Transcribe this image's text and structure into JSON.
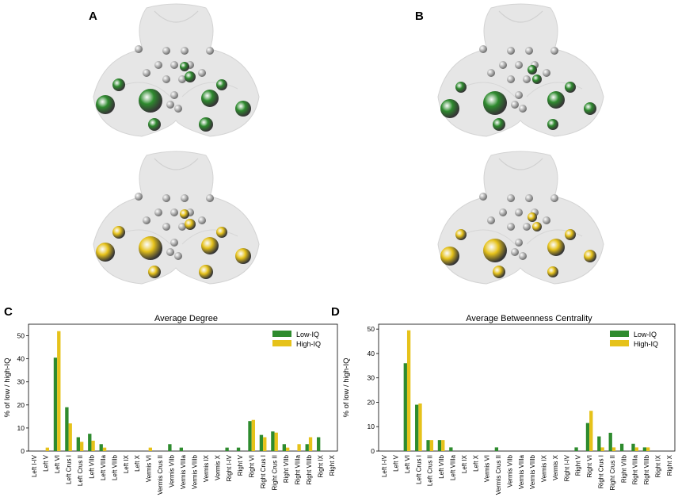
{
  "panels": {
    "a_label": "A",
    "b_label": "B",
    "c_label": "C",
    "d_label": "D"
  },
  "colors": {
    "low_iq": "#2e8b2e",
    "high_iq": "#e6c21a",
    "node_gray": "#9a9a9a"
  },
  "icons": {
    "brain_a_top": "cerebellum-green-nodes",
    "brain_a_bottom": "cerebellum-yellow-nodes",
    "brain_b_top": "cerebellum-green-nodes",
    "brain_b_bottom": "cerebellum-yellow-nodes"
  },
  "chart_data": [
    {
      "type": "bar",
      "title": "Average Degree",
      "ylabel": "% of low / high-IQ",
      "xlabel": "",
      "ylim": [
        0,
        55
      ],
      "yticks": [
        0,
        10,
        20,
        30,
        40,
        50
      ],
      "legend": "top-right",
      "categories": [
        "Left I-IV",
        "Left V",
        "Left VI",
        "Left Crus I",
        "Left Crus II",
        "Left VIIb",
        "Left VIIIa",
        "Left VIIIb",
        "Left IX",
        "Left X",
        "Vermis VI",
        "Vermis Crus II",
        "Vermis VIIb",
        "Vermis VIIIa",
        "Vermis VIIIb",
        "Vermis IX",
        "Vermis X",
        "Right I-IV",
        "Right V",
        "Right VI",
        "Right Crus I",
        "Right Crus II",
        "Right VIIb",
        "Right VIIIa",
        "Right VIIIb",
        "Right IX",
        "Right X"
      ],
      "series": [
        {
          "name": "Low-IQ",
          "values": [
            0,
            0,
            40.5,
            19,
            6,
            7.5,
            3,
            0,
            0,
            0,
            0,
            0,
            3,
            1.5,
            0,
            0,
            0,
            1.5,
            1.5,
            13,
            7,
            8.5,
            3,
            0,
            3,
            6,
            0
          ]
        },
        {
          "name": "High-IQ",
          "values": [
            0,
            1.5,
            52,
            12,
            4,
            4.5,
            1.5,
            0,
            0,
            0,
            1.5,
            0,
            0,
            0,
            0,
            0,
            0,
            0,
            0,
            13.5,
            6,
            8,
            1.5,
            3,
            6,
            0,
            0
          ]
        }
      ]
    },
    {
      "type": "bar",
      "title": "Average Betweenness Centrality",
      "ylabel": "% of low / high-IQ",
      "xlabel": "",
      "ylim": [
        0,
        52
      ],
      "yticks": [
        0,
        10,
        20,
        30,
        40,
        50
      ],
      "legend": "top-right",
      "categories": [
        "Left I-IV",
        "Left V",
        "Left VI",
        "Left Crus I",
        "Left Crus II",
        "Left VIIb",
        "Left VIIIa",
        "Left IX",
        "Left X",
        "Vermis VI",
        "Vermis Crus II",
        "Vermis VIIb",
        "Vermis VIIIa",
        "Vermis VIIIb",
        "Vermis IX",
        "Vermis X",
        "Right I-IV",
        "Right V",
        "Right VI",
        "Right Crus I",
        "Right Crus II",
        "Right VIIb",
        "Right VIIIa",
        "Right VIIIb",
        "Right IX",
        "Right X"
      ],
      "series": [
        {
          "name": "Low-IQ",
          "values": [
            0,
            0,
            36,
            19,
            4.5,
            4.5,
            1.5,
            0,
            0,
            0,
            1.5,
            0,
            0,
            0,
            0,
            0,
            0,
            1.5,
            11.5,
            6,
            7.5,
            3,
            3,
            1.5,
            0,
            0
          ]
        },
        {
          "name": "High-IQ",
          "values": [
            0,
            0,
            49.5,
            19.5,
            4.5,
            4.5,
            0,
            0,
            0,
            0,
            0,
            0,
            0,
            0,
            0,
            0,
            0,
            0,
            16.5,
            1.5,
            1.5,
            0,
            1.5,
            1.5,
            0,
            0
          ]
        }
      ]
    }
  ]
}
